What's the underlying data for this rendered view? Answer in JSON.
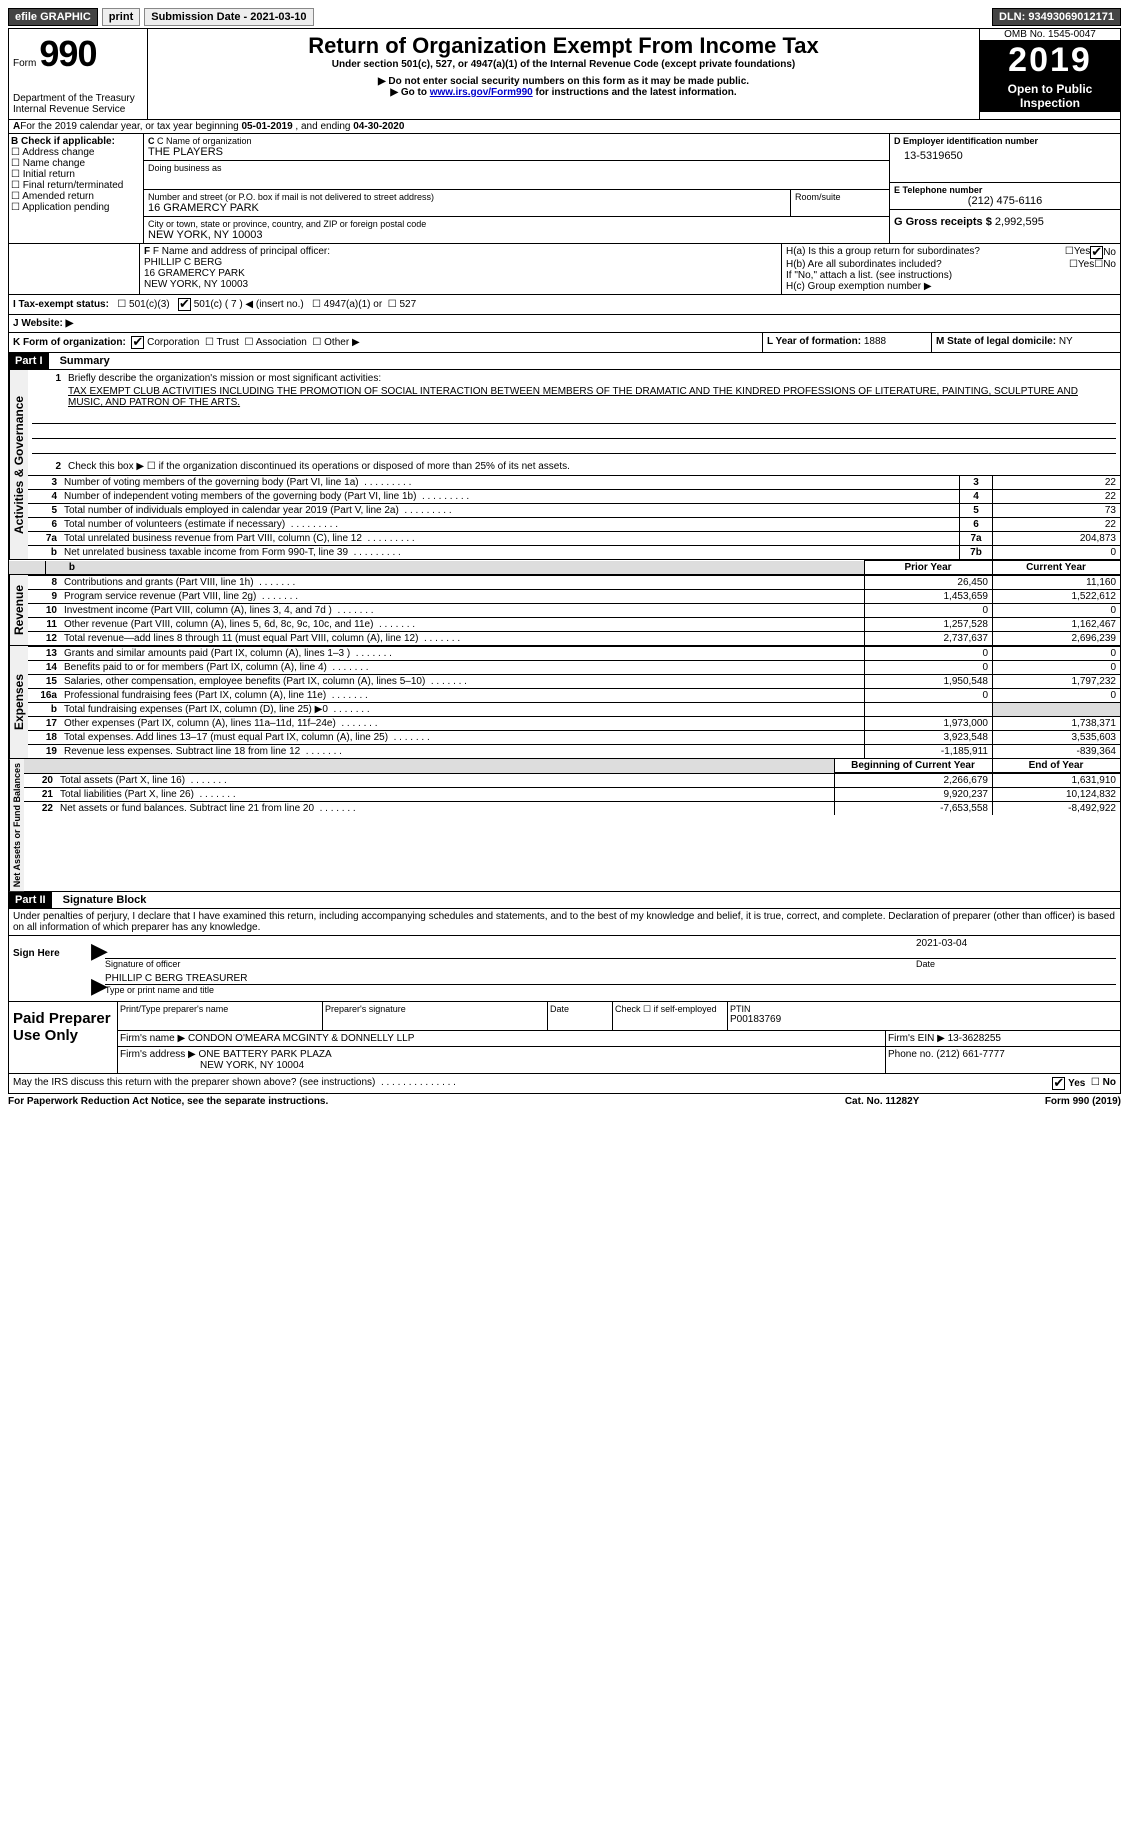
{
  "topbar": {
    "efile": "efile GRAPHIC",
    "print": "print",
    "submission_label": "Submission Date - 2021-03-10",
    "dln_label": "DLN: 93493069012171"
  },
  "header": {
    "form_prefix": "Form",
    "form_number": "990",
    "dept": "Department of the Treasury\nInternal Revenue Service",
    "title": "Return of Organization Exempt From Income Tax",
    "subtitle": "Under section 501(c), 527, or 4947(a)(1) of the Internal Revenue Code (except private foundations)",
    "note1": "▶ Do not enter social security numbers on this form as it may be made public.",
    "note2_pre": "▶ Go to ",
    "note2_link": "www.irs.gov/Form990",
    "note2_post": " for instructions and the latest information.",
    "omb": "OMB No. 1545-0047",
    "year": "2019",
    "open_public": "Open to Public Inspection"
  },
  "period": {
    "label_a": "For the 2019 calendar year, or tax year beginning ",
    "begin": "05-01-2019",
    "mid": " , and ending ",
    "end": "04-30-2020"
  },
  "boxB": {
    "label": "B Check if applicable:",
    "items": [
      "Address change",
      "Name change",
      "Initial return",
      "Final return/terminated",
      "Amended return",
      "Application pending"
    ]
  },
  "boxC": {
    "name_label": "C Name of organization",
    "name": "THE PLAYERS",
    "dba_label": "Doing business as",
    "street_label": "Number and street (or P.O. box if mail is not delivered to street address)",
    "room_label": "Room/suite",
    "street": "16 GRAMERCY PARK",
    "city_label": "City or town, state or province, country, and ZIP or foreign postal code",
    "city": "NEW YORK, NY  10003"
  },
  "boxD": {
    "label": "D Employer identification number",
    "value": "13-5319650"
  },
  "boxE": {
    "label": "E Telephone number",
    "value": "(212) 475-6116"
  },
  "boxG": {
    "label": "G Gross receipts $",
    "value": "2,992,595"
  },
  "boxF": {
    "label": "F Name and address of principal officer:",
    "name": "PHILLIP C BERG",
    "street": "16 GRAMERCY PARK",
    "city": "NEW YORK, NY  10003"
  },
  "boxH": {
    "a_label": "H(a)  Is this a group return for subordinates?",
    "a_yes": "Yes",
    "a_no": "No",
    "b_label": "H(b)  Are all subordinates included?",
    "b_yes": "Yes",
    "b_no": "No",
    "b_note": "If \"No,\" attach a list. (see instructions)",
    "c_label": "H(c)  Group exemption number ▶"
  },
  "boxI": {
    "label": "I  Tax-exempt status:",
    "opt1": "501(c)(3)",
    "opt2": "501(c) ( 7 ) ◀ (insert no.)",
    "opt3": "4947(a)(1) or",
    "opt4": "527"
  },
  "boxJ": {
    "label": "J  Website: ▶"
  },
  "boxK": {
    "label": "K Form of organization:",
    "opts": [
      "Corporation",
      "Trust",
      "Association",
      "Other ▶"
    ]
  },
  "boxL": {
    "label": "L Year of formation: ",
    "value": "1888"
  },
  "boxM": {
    "label": "M State of legal domicile: ",
    "value": "NY"
  },
  "part1": {
    "hdr": "Part I",
    "title": "Summary",
    "q1": "Briefly describe the organization's mission or most significant activities:",
    "mission": "TAX EXEMPT CLUB ACTIVITIES INCLUDING THE PROMOTION OF SOCIAL INTERACTION BETWEEN MEMBERS OF THE DRAMATIC AND THE KINDRED PROFESSIONS OF LITERATURE, PAINTING, SCULPTURE AND MUSIC, AND PATRON OF THE ARTS.",
    "q2": "Check this box ▶ ☐  if the organization discontinued its operations or disposed of more than 25% of its net assets."
  },
  "gov_lines": [
    {
      "n": "3",
      "text": "Number of voting members of the governing body (Part VI, line 1a)",
      "box": "3",
      "val": "22"
    },
    {
      "n": "4",
      "text": "Number of independent voting members of the governing body (Part VI, line 1b)",
      "box": "4",
      "val": "22"
    },
    {
      "n": "5",
      "text": "Total number of individuals employed in calendar year 2019 (Part V, line 2a)",
      "box": "5",
      "val": "73"
    },
    {
      "n": "6",
      "text": "Total number of volunteers (estimate if necessary)",
      "box": "6",
      "val": "22"
    },
    {
      "n": "7a",
      "text": "Total unrelated business revenue from Part VIII, column (C), line 12",
      "box": "7a",
      "val": "204,873"
    },
    {
      "n": "b",
      "text": "Net unrelated business taxable income from Form 990-T, line 39",
      "box": "7b",
      "val": "0"
    }
  ],
  "col_hdrs": {
    "prior": "Prior Year",
    "current": "Current Year"
  },
  "revenue": [
    {
      "n": "8",
      "text": "Contributions and grants (Part VIII, line 1h)",
      "p": "26,450",
      "c": "11,160"
    },
    {
      "n": "9",
      "text": "Program service revenue (Part VIII, line 2g)",
      "p": "1,453,659",
      "c": "1,522,612"
    },
    {
      "n": "10",
      "text": "Investment income (Part VIII, column (A), lines 3, 4, and 7d )",
      "p": "0",
      "c": "0"
    },
    {
      "n": "11",
      "text": "Other revenue (Part VIII, column (A), lines 5, 6d, 8c, 9c, 10c, and 11e)",
      "p": "1,257,528",
      "c": "1,162,467"
    },
    {
      "n": "12",
      "text": "Total revenue—add lines 8 through 11 (must equal Part VIII, column (A), line 12)",
      "p": "2,737,637",
      "c": "2,696,239"
    }
  ],
  "expenses": [
    {
      "n": "13",
      "text": "Grants and similar amounts paid (Part IX, column (A), lines 1–3 )",
      "p": "0",
      "c": "0"
    },
    {
      "n": "14",
      "text": "Benefits paid to or for members (Part IX, column (A), line 4)",
      "p": "0",
      "c": "0"
    },
    {
      "n": "15",
      "text": "Salaries, other compensation, employee benefits (Part IX, column (A), lines 5–10)",
      "p": "1,950,548",
      "c": "1,797,232"
    },
    {
      "n": "16a",
      "text": "Professional fundraising fees (Part IX, column (A), line 11e)",
      "p": "0",
      "c": "0"
    },
    {
      "n": "b",
      "text": "Total fundraising expenses (Part IX, column (D), line 25) ▶0",
      "p": "",
      "c": "",
      "shaded": true
    },
    {
      "n": "17",
      "text": "Other expenses (Part IX, column (A), lines 11a–11d, 11f–24e)",
      "p": "1,973,000",
      "c": "1,738,371"
    },
    {
      "n": "18",
      "text": "Total expenses. Add lines 13–17 (must equal Part IX, column (A), line 25)",
      "p": "3,923,548",
      "c": "3,535,603"
    },
    {
      "n": "19",
      "text": "Revenue less expenses. Subtract line 18 from line 12",
      "p": "-1,185,911",
      "c": "-839,364"
    }
  ],
  "net_hdrs": {
    "begin": "Beginning of Current Year",
    "end": "End of Year"
  },
  "net": [
    {
      "n": "20",
      "text": "Total assets (Part X, line 16)",
      "p": "2,266,679",
      "c": "1,631,910"
    },
    {
      "n": "21",
      "text": "Total liabilities (Part X, line 26)",
      "p": "9,920,237",
      "c": "10,124,832"
    },
    {
      "n": "22",
      "text": "Net assets or fund balances. Subtract line 21 from line 20",
      "p": "-7,653,558",
      "c": "-8,492,922"
    }
  ],
  "vlabels": {
    "gov": "Activities & Governance",
    "rev": "Revenue",
    "exp": "Expenses",
    "net": "Net Assets or Fund Balances"
  },
  "part2": {
    "hdr": "Part II",
    "title": "Signature Block",
    "penalty": "Under penalties of perjury, I declare that I have examined this return, including accompanying schedules and statements, and to the best of my knowledge and belief, it is true, correct, and complete. Declaration of preparer (other than officer) is based on all information of which preparer has any knowledge."
  },
  "sign": {
    "label": "Sign Here",
    "sig_label": "Signature of officer",
    "date_label": "Date",
    "date": "2021-03-04",
    "name": "PHILLIP C BERG TREASURER",
    "name_label": "Type or print name and title"
  },
  "paid": {
    "label": "Paid Preparer Use Only",
    "pt_name": "Print/Type preparer's name",
    "pt_sig": "Preparer's signature",
    "pt_date": "Date",
    "pt_check": "Check ☐ if self-employed",
    "ptin_label": "PTIN",
    "ptin": "P00183769",
    "firm_name_label": "Firm's name    ▶",
    "firm_name": "CONDON O'MEARA MCGINTY & DONNELLY LLP",
    "firm_ein_label": "Firm's EIN ▶",
    "firm_ein": "13-3628255",
    "firm_addr_label": "Firm's address ▶",
    "firm_addr1": "ONE BATTERY PARK PLAZA",
    "firm_addr2": "NEW YORK, NY  10004",
    "phone_label": "Phone no.",
    "phone": "(212) 661-7777"
  },
  "footer": {
    "discuss": "May the IRS discuss this return with the preparer shown above? (see instructions)",
    "yes": "Yes",
    "no": "No",
    "pra": "For Paperwork Reduction Act Notice, see the separate instructions.",
    "cat": "Cat. No. 11282Y",
    "form": "Form 990 (2019)"
  }
}
